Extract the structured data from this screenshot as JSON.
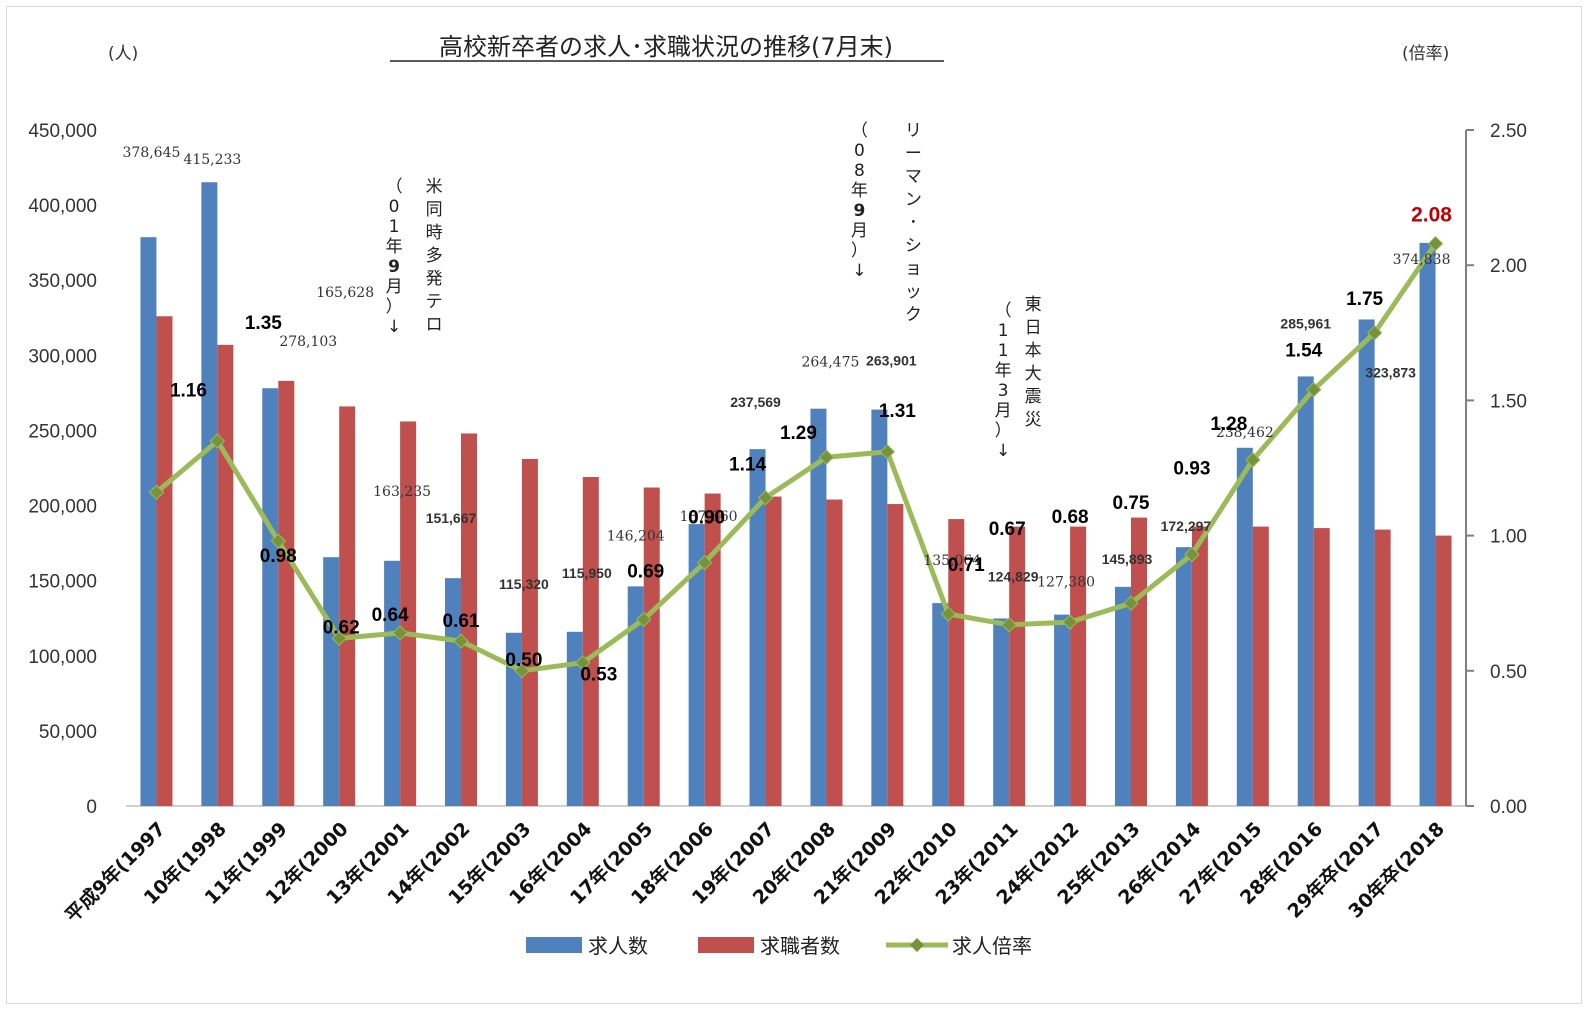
{
  "chart_data": {
    "type": "bar",
    "title": "高校新卒者の求人･求職状況の推移(7月末)",
    "left_unit": "(人)",
    "right_unit": "(倍率)",
    "categories": [
      "平成9年(1997",
      "10年(1998",
      "11年(1999",
      "12年(2000",
      "13年(2001",
      "14年(2002",
      "15年(2003",
      "16年(2004",
      "17年(2005",
      "18年(2006",
      "19年(2007",
      "20年(2008",
      "21年(2009",
      "22年(2010",
      "23年(2011",
      "24年(2012",
      "25年(2013",
      "26年(2014",
      "27年(2015",
      "28年(2016",
      "29年卒(2017",
      "30年卒(2018"
    ],
    "y_left": {
      "min": 0,
      "max": 450000,
      "step": 50000,
      "tick_labels": [
        "0",
        "50,000",
        "100,000",
        "150,000",
        "200,000",
        "250,000",
        "300,000",
        "350,000",
        "400,000",
        "450,000"
      ]
    },
    "y_right": {
      "min": 0,
      "max": 2.5,
      "step": 0.5,
      "tick_labels": [
        "0.00",
        "0.50",
        "1.00",
        "1.50",
        "2.00",
        "2.50"
      ]
    },
    "series": [
      {
        "name": "求人数",
        "type": "bar",
        "axis": "left",
        "color": "#4f81bd",
        "values": [
          378645,
          415233,
          278103,
          165628,
          163235,
          151667,
          115320,
          115950,
          146204,
          187660,
          237569,
          264475,
          263901,
          135064,
          124829,
          127380,
          145893,
          172297,
          238462,
          285961,
          323873,
          374838
        ],
        "labels": [
          "378,645",
          "415,233",
          "278,103",
          "165,628",
          "163,235",
          "151,667",
          "115,320",
          "115,950",
          "146,204",
          "187,660",
          "237,569",
          "264,475",
          "263,901",
          "135,064",
          "124,829",
          "127,380",
          "145,893",
          "172,297",
          "238,462",
          "285,961",
          "323,873",
          "374,838"
        ]
      },
      {
        "name": "求職者数",
        "type": "bar",
        "axis": "left",
        "color": "#c0504d",
        "values": [
          326000,
          307000,
          283000,
          266000,
          256000,
          248000,
          231000,
          219000,
          212000,
          208000,
          206000,
          204000,
          201000,
          191000,
          186000,
          186000,
          192000,
          186000,
          186000,
          185000,
          184000,
          180000
        ]
      },
      {
        "name": "求人倍率",
        "type": "line",
        "axis": "right",
        "color": "#9bbb59",
        "values": [
          1.16,
          1.35,
          0.98,
          0.62,
          0.64,
          0.61,
          0.5,
          0.53,
          0.69,
          0.9,
          1.14,
          1.29,
          1.31,
          0.71,
          0.67,
          0.68,
          0.75,
          0.93,
          1.28,
          1.54,
          1.75,
          2.08
        ],
        "labels": [
          "1.16",
          "1.35",
          "0.98",
          "0.62",
          "0.64",
          "0.61",
          "0.50",
          "0.53",
          "0.69",
          "0.90",
          "1.14",
          "1.29",
          "1.31",
          "0.71",
          "0.67",
          "0.68",
          "0.75",
          "0.93",
          "1.28",
          "1.54",
          "1.75",
          "2.08"
        ]
      }
    ],
    "highlight_label_color": "#c00000",
    "annotations": [
      {
        "index": 4,
        "main": "米同時多発テロ",
        "paren": "（01年9月）↓"
      },
      {
        "index": 12,
        "main": "リーマン･ショック",
        "paren": "（08年9月）↓"
      },
      {
        "index": 14,
        "main": "東日本大震災",
        "paren": "（11年3月）↓"
      }
    ],
    "legend_position": "bottom",
    "grid": false
  }
}
